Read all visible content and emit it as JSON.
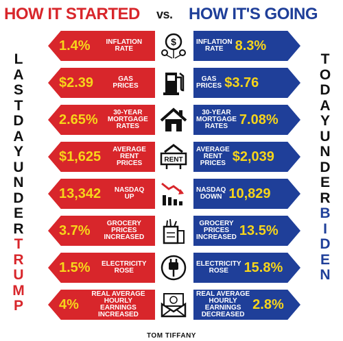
{
  "header": {
    "left_title": "HOW IT STARTED",
    "vs": "vs.",
    "right_title": "HOW IT'S GOING"
  },
  "side": {
    "left_letters": [
      "L",
      "A",
      "S",
      "T",
      "D",
      "A",
      "Y",
      "U",
      "N",
      "D",
      "E",
      "R",
      "T",
      "R",
      "U",
      "M",
      "P"
    ],
    "right_letters": [
      "T",
      "O",
      "D",
      "A",
      "Y",
      "U",
      "N",
      "D",
      "E",
      "R",
      "B",
      "I",
      "D",
      "E",
      "N"
    ]
  },
  "rows": [
    {
      "left_value": "1.4%",
      "left_label": "INFLATION\nRATE",
      "right_value": "8.3%",
      "right_label": "INFLATION\nRATE",
      "icon": "dollar-balloon-icon"
    },
    {
      "left_value": "$2.39",
      "left_label": "GAS\nPRICES",
      "right_value": "$3.76",
      "right_label": "GAS\nPRICES",
      "icon": "gas-pump-icon"
    },
    {
      "left_value": "2.65%",
      "left_label": "30-YEAR\nMORTGAGE\nRATES",
      "right_value": "7.08%",
      "right_label": "30-YEAR\nMORTGAGE\nRATES",
      "icon": "house-icon"
    },
    {
      "left_value": "$1,625",
      "left_label": "AVERAGE\nRENT\nPRICES",
      "right_value": "$2,039",
      "right_label": "AVERAGE\nRENT\nPRICES",
      "icon": "rent-sign-icon",
      "icon_text": "RENT"
    },
    {
      "left_value": "13,342",
      "left_label": "NASDAQ\nUP",
      "right_value": "10,829",
      "right_label": "NASDAQ\nDOWN",
      "icon": "chart-down-icon"
    },
    {
      "left_value": "3.7%",
      "left_label": "GROCERY\nPRICES\nINCREASED",
      "right_value": "13.5%",
      "right_label": "GROCERY\nPRICES\nINCREASED",
      "icon": "grocery-bag-icon"
    },
    {
      "left_value": "1.5%",
      "left_label": "ELECTRICITY\nROSE",
      "right_value": "15.8%",
      "right_label": "ELECTRICITY\nROSE",
      "icon": "plug-icon"
    },
    {
      "left_value": "4%",
      "left_label": "REAL AVERAGE\nHOURLY\nEARNINGS\nINCREASED",
      "right_value": "2.8%",
      "right_label": "REAL AVERAGE\nHOURLY\nEARNINGS\nDECREASED",
      "icon": "money-envelope-icon"
    }
  ],
  "footer": {
    "brand": "TOM TIFFANY"
  },
  "colors": {
    "red": "#d8262b",
    "blue": "#1f3f99",
    "yellow": "#f7d51a"
  }
}
